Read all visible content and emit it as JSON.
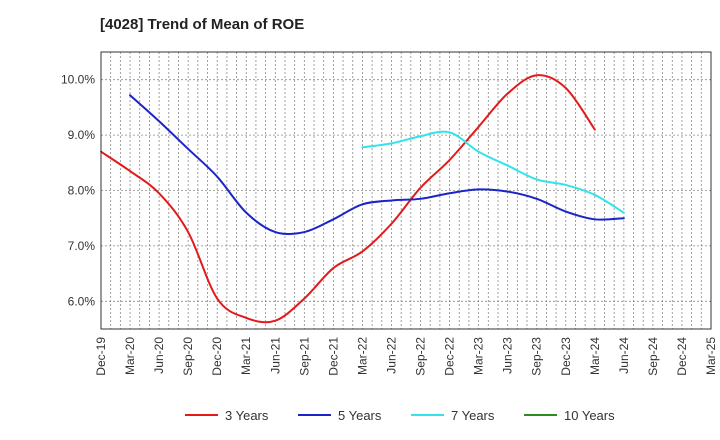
{
  "chart_data": {
    "type": "line",
    "title": "[4028]  Trend of Mean of ROE",
    "xlabel": "",
    "ylabel": "",
    "x_ticks": [
      "Dec-19",
      "Mar-20",
      "Jun-20",
      "Sep-20",
      "Dec-20",
      "Mar-21",
      "Jun-21",
      "Sep-21",
      "Dec-21",
      "Mar-22",
      "Jun-22",
      "Sep-22",
      "Dec-22",
      "Mar-23",
      "Jun-23",
      "Sep-23",
      "Dec-23",
      "Mar-24",
      "Jun-24",
      "Sep-24",
      "Dec-24",
      "Mar-25"
    ],
    "y_ticks": [
      "6.0%",
      "7.0%",
      "8.0%",
      "9.0%",
      "10.0%"
    ],
    "y_tick_values": [
      6.0,
      7.0,
      8.0,
      9.0,
      10.0
    ],
    "ylim": [
      5.5,
      10.5
    ],
    "grid": true,
    "legend_position": "bottom",
    "series": [
      {
        "name": "3 Years",
        "color": "#e31a1c",
        "values": [
          8.7,
          8.35,
          7.95,
          7.25,
          6.05,
          5.7,
          5.65,
          6.05,
          6.6,
          6.9,
          7.4,
          8.05,
          8.55,
          9.15,
          9.75,
          10.08,
          9.85,
          9.1
        ]
      },
      {
        "name": "5 Years",
        "color": "#1a24c9",
        "values": [
          null,
          9.72,
          9.25,
          8.75,
          8.25,
          7.6,
          7.25,
          7.25,
          7.48,
          7.75,
          7.82,
          7.85,
          7.95,
          8.02,
          7.98,
          7.85,
          7.62,
          7.48,
          7.5
        ]
      },
      {
        "name": "7 Years",
        "color": "#33e3eb",
        "values": [
          null,
          null,
          null,
          null,
          null,
          null,
          null,
          null,
          null,
          8.78,
          8.85,
          8.98,
          9.05,
          8.7,
          8.45,
          8.2,
          8.1,
          7.92,
          7.6
        ]
      },
      {
        "name": "10 Years",
        "color": "#2e8b22",
        "values": []
      }
    ]
  }
}
